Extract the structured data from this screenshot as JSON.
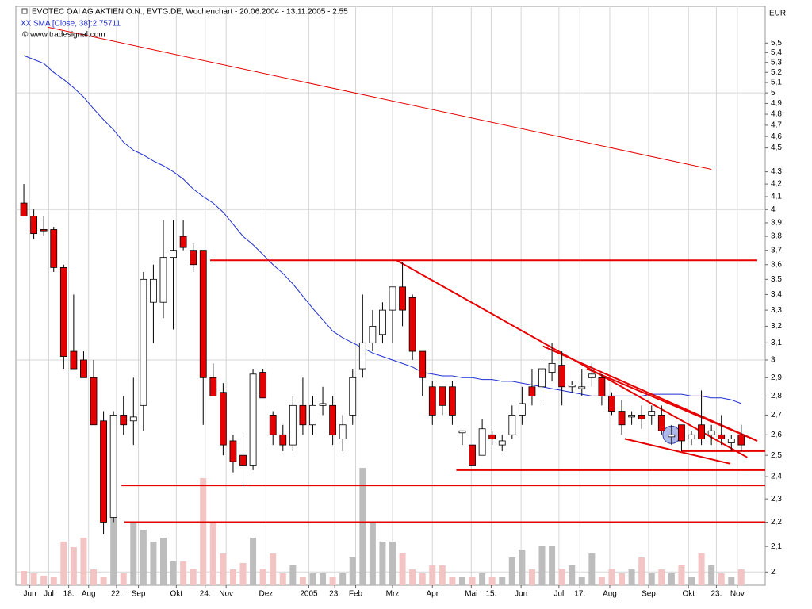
{
  "chart_data": {
    "type": "candlestick",
    "title": "EVOTEC OAI AG AKTIEN O.N., EVTG.DE, Wochenchart - 20.06.2004 - 13.11.2005 - 2.55",
    "indicator": "SMA [Close, 38]:2.75711",
    "copyright": "© www.tradesignal.com",
    "currency": "EUR",
    "log_scale": true,
    "grid": true,
    "up_color": "#ffffff",
    "down_color": "#e60000",
    "sma_color": "#1f2fd0",
    "trendline_color": "#e60000",
    "volume_up_color": "#bdbdbd",
    "volume_down_color": "#f2c4c4",
    "xlim": [
      -0.8,
      74.4
    ],
    "ylim": [
      1.95,
      5.9
    ],
    "volume_ylim": [
      0,
      730
    ],
    "xticks": [
      {
        "value": 0.6,
        "label": "Jun"
      },
      {
        "value": 2.5,
        "label": "Jul"
      },
      {
        "value": 4.5,
        "label": "18."
      },
      {
        "value": 6.5,
        "label": "Aug"
      },
      {
        "value": 9.3,
        "label": "22."
      },
      {
        "value": 11.5,
        "label": "Sep"
      },
      {
        "value": 15.3,
        "label": "Okt"
      },
      {
        "value": 18.2,
        "label": "24."
      },
      {
        "value": 20.3,
        "label": "Nov"
      },
      {
        "value": 24.3,
        "label": "Dez"
      },
      {
        "value": 28.6,
        "label": "2005"
      },
      {
        "value": 31.2,
        "label": "23."
      },
      {
        "value": 33.3,
        "label": "Feb"
      },
      {
        "value": 37,
        "label": "Mrz"
      },
      {
        "value": 41,
        "label": "Apr"
      },
      {
        "value": 44.9,
        "label": "Mai"
      },
      {
        "value": 46.9,
        "label": "15."
      },
      {
        "value": 49.9,
        "label": "Jun"
      },
      {
        "value": 53.7,
        "label": "Jul"
      },
      {
        "value": 55.8,
        "label": "17."
      },
      {
        "value": 58.8,
        "label": "Aug"
      },
      {
        "value": 62.7,
        "label": "Sep"
      },
      {
        "value": 66.7,
        "label": "Okt"
      },
      {
        "value": 69.5,
        "label": "23."
      },
      {
        "value": 71.6,
        "label": "Nov"
      }
    ],
    "yticks": [
      2,
      {
        "value": 2.1,
        "label": "2,1"
      },
      {
        "value": 2.2,
        "label": "2,2"
      },
      {
        "value": 2.3,
        "label": "2,3"
      },
      {
        "value": 2.4,
        "label": "2,4"
      },
      {
        "value": 2.5,
        "label": "2,5"
      },
      {
        "value": 2.6,
        "label": "2,6"
      },
      {
        "value": 2.7,
        "label": "2,7"
      },
      {
        "value": 2.8,
        "label": "2,8"
      },
      {
        "value": 2.9,
        "label": "2,9"
      },
      3,
      {
        "value": 3.1,
        "label": "3,1"
      },
      {
        "value": 3.2,
        "label": "3,2"
      },
      {
        "value": 3.3,
        "label": "3,3"
      },
      {
        "value": 3.4,
        "label": "3,4"
      },
      {
        "value": 3.5,
        "label": "3,5"
      },
      {
        "value": 3.6,
        "label": "3,6"
      },
      {
        "value": 3.7,
        "label": "3,7"
      },
      {
        "value": 3.8,
        "label": "3,8"
      },
      {
        "value": 3.9,
        "label": "3,9"
      },
      4,
      {
        "value": 4.1,
        "label": "4,1"
      },
      {
        "value": 4.2,
        "label": "4,2"
      },
      {
        "value": 4.3,
        "label": "4,3"
      },
      {
        "value": 4.5,
        "label": "4,5"
      },
      {
        "value": 4.6,
        "label": "4,6"
      },
      {
        "value": 4.7,
        "label": "4,7"
      },
      {
        "value": 4.8,
        "label": "4,8"
      },
      {
        "value": 4.9,
        "label": "4,9"
      },
      5,
      {
        "value": 5.1,
        "label": "5,1"
      },
      {
        "value": 5.2,
        "label": "5,2"
      },
      {
        "value": 5.3,
        "label": "5,3"
      },
      {
        "value": 5.4,
        "label": "5,4"
      },
      {
        "value": 5.5,
        "label": "5,5"
      }
    ],
    "ohlc": [
      [
        4.05,
        4.2,
        3.95,
        3.95
      ],
      [
        3.95,
        4.0,
        3.78,
        3.82
      ],
      [
        3.85,
        3.95,
        3.8,
        3.84
      ],
      [
        3.85,
        3.87,
        3.55,
        3.58
      ],
      [
        3.58,
        3.6,
        2.95,
        3.02
      ],
      [
        3.05,
        3.4,
        2.95,
        2.95
      ],
      [
        3.0,
        3.05,
        2.9,
        2.9
      ],
      [
        2.9,
        3.0,
        2.65,
        2.65
      ],
      [
        2.67,
        2.72,
        2.15,
        2.2
      ],
      [
        2.22,
        2.72,
        2.2,
        2.7
      ],
      [
        2.7,
        2.8,
        2.6,
        2.65
      ],
      [
        2.67,
        2.9,
        2.55,
        2.69
      ],
      [
        2.75,
        3.55,
        2.62,
        3.5
      ],
      [
        3.35,
        3.6,
        3.1,
        3.5
      ],
      [
        3.35,
        3.92,
        3.25,
        3.65
      ],
      [
        3.65,
        3.92,
        3.18,
        3.7
      ],
      [
        3.8,
        3.92,
        3.7,
        3.72
      ],
      [
        3.7,
        3.75,
        3.55,
        3.6
      ],
      [
        3.7,
        3.7,
        2.65,
        2.9
      ],
      [
        2.9,
        2.98,
        2.8,
        2.8
      ],
      [
        2.82,
        2.87,
        2.5,
        2.55
      ],
      [
        2.57,
        2.6,
        2.42,
        2.47
      ],
      [
        2.5,
        2.6,
        2.35,
        2.45
      ],
      [
        2.45,
        2.95,
        2.43,
        2.92
      ],
      [
        2.93,
        2.95,
        2.79,
        2.79
      ],
      [
        2.7,
        2.72,
        2.55,
        2.6
      ],
      [
        2.6,
        2.65,
        2.52,
        2.55
      ],
      [
        2.55,
        2.8,
        2.52,
        2.75
      ],
      [
        2.75,
        2.9,
        2.6,
        2.65
      ],
      [
        2.65,
        2.8,
        2.6,
        2.75
      ],
      [
        2.75,
        2.85,
        2.7,
        2.76
      ],
      [
        2.75,
        2.8,
        2.55,
        2.6
      ],
      [
        2.58,
        2.7,
        2.52,
        2.65
      ],
      [
        2.7,
        2.95,
        2.65,
        2.9
      ],
      [
        2.95,
        3.4,
        2.9,
        3.1
      ],
      [
        3.1,
        3.3,
        3.05,
        3.2
      ],
      [
        3.15,
        3.35,
        3.1,
        3.3
      ],
      [
        3.3,
        3.45,
        3.1,
        3.45
      ],
      [
        3.45,
        3.62,
        3.2,
        3.3
      ],
      [
        3.38,
        3.4,
        3.0,
        3.05
      ],
      [
        3.05,
        3.05,
        2.8,
        2.9
      ],
      [
        2.85,
        2.88,
        2.65,
        2.7
      ],
      [
        2.85,
        2.85,
        2.7,
        2.75
      ],
      [
        2.85,
        2.88,
        2.65,
        2.7
      ],
      [
        2.61,
        2.62,
        2.55,
        2.62
      ],
      [
        2.55,
        2.55,
        2.45,
        2.45
      ],
      [
        2.5,
        2.68,
        2.5,
        2.63
      ],
      [
        2.6,
        2.62,
        2.55,
        2.58
      ],
      [
        2.55,
        2.6,
        2.52,
        2.57
      ],
      [
        2.6,
        2.75,
        2.58,
        2.7
      ],
      [
        2.7,
        2.85,
        2.65,
        2.76
      ],
      [
        2.85,
        2.95,
        2.75,
        2.8
      ],
      [
        2.85,
        3.0,
        2.75,
        2.95
      ],
      [
        2.93,
        3.1,
        2.88,
        2.98
      ],
      [
        2.97,
        3.05,
        2.75,
        2.85
      ],
      [
        2.85,
        2.88,
        2.82,
        2.86
      ],
      [
        2.84,
        2.95,
        2.8,
        2.85
      ],
      [
        2.9,
        2.98,
        2.85,
        2.92
      ],
      [
        2.9,
        2.92,
        2.75,
        2.8
      ],
      [
        2.8,
        2.82,
        2.7,
        2.72
      ],
      [
        2.72,
        2.78,
        2.6,
        2.65
      ],
      [
        2.69,
        2.72,
        2.65,
        2.7
      ],
      [
        2.7,
        2.75,
        2.63,
        2.68
      ],
      [
        2.7,
        2.75,
        2.65,
        2.72
      ],
      [
        2.7,
        2.75,
        2.6,
        2.62
      ],
      [
        2.59,
        2.65,
        2.55,
        2.6
      ],
      [
        2.65,
        2.65,
        2.52,
        2.57
      ],
      [
        2.58,
        2.62,
        2.55,
        2.6
      ],
      [
        2.65,
        2.83,
        2.55,
        2.58
      ],
      [
        2.6,
        2.65,
        2.55,
        2.62
      ],
      [
        2.6,
        2.7,
        2.55,
        2.58
      ],
      [
        2.56,
        2.6,
        2.52,
        2.58
      ],
      [
        2.6,
        2.65,
        2.52,
        2.55
      ]
    ],
    "volume": [
      18,
      15,
      12,
      10,
      55,
      48,
      60,
      20,
      10,
      85,
      15,
      80,
      70,
      55,
      60,
      30,
      30,
      20,
      135,
      80,
      40,
      20,
      28,
      60,
      20,
      40,
      15,
      25,
      10,
      15,
      15,
      10,
      15,
      35,
      148,
      80,
      55,
      55,
      40,
      20,
      15,
      25,
      25,
      10,
      10,
      10,
      15,
      10,
      10,
      35,
      45,
      20,
      50,
      50,
      20,
      25,
      10,
      40,
      10,
      20,
      15,
      20,
      35,
      15,
      20,
      15,
      25,
      10,
      40,
      25,
      15,
      10,
      20
    ],
    "sma": [
      5.37,
      5.33,
      5.29,
      5.2,
      5.13,
      5.05,
      4.96,
      4.85,
      4.75,
      4.66,
      4.55,
      4.48,
      4.44,
      4.39,
      4.35,
      4.3,
      4.24,
      4.16,
      4.1,
      4.05,
      3.98,
      3.89,
      3.8,
      3.74,
      3.67,
      3.6,
      3.54,
      3.47,
      3.39,
      3.31,
      3.24,
      3.17,
      3.13,
      3.1,
      3.07,
      3.04,
      3.02,
      3.0,
      2.98,
      2.96,
      2.93,
      2.92,
      2.91,
      2.91,
      2.9,
      2.9,
      2.89,
      2.89,
      2.88,
      2.88,
      2.87,
      2.86,
      2.85,
      2.84,
      2.83,
      2.82,
      2.81,
      2.8,
      2.8,
      2.8,
      2.8,
      2.8,
      2.8,
      2.81,
      2.81,
      2.81,
      2.81,
      2.8,
      2.8,
      2.79,
      2.79,
      2.78,
      2.76
    ],
    "trendlines": [
      [
        2.4,
        5.67,
        69.0,
        4.32
      ],
      [
        18.7,
        3.63,
        73.6,
        3.63
      ],
      [
        9.8,
        2.36,
        74.4,
        2.36
      ],
      [
        10.1,
        2.2,
        74.4,
        2.2
      ],
      [
        43.4,
        2.43,
        74.4,
        2.43
      ],
      [
        66.0,
        2.52,
        74.4,
        2.52
      ],
      [
        37.4,
        3.63,
        72.6,
        2.49
      ],
      [
        52.1,
        3.08,
        73.6,
        2.57
      ],
      [
        56.5,
        2.95,
        73.6,
        2.57
      ],
      [
        60.3,
        2.58,
        70.9,
        2.46
      ]
    ]
  }
}
